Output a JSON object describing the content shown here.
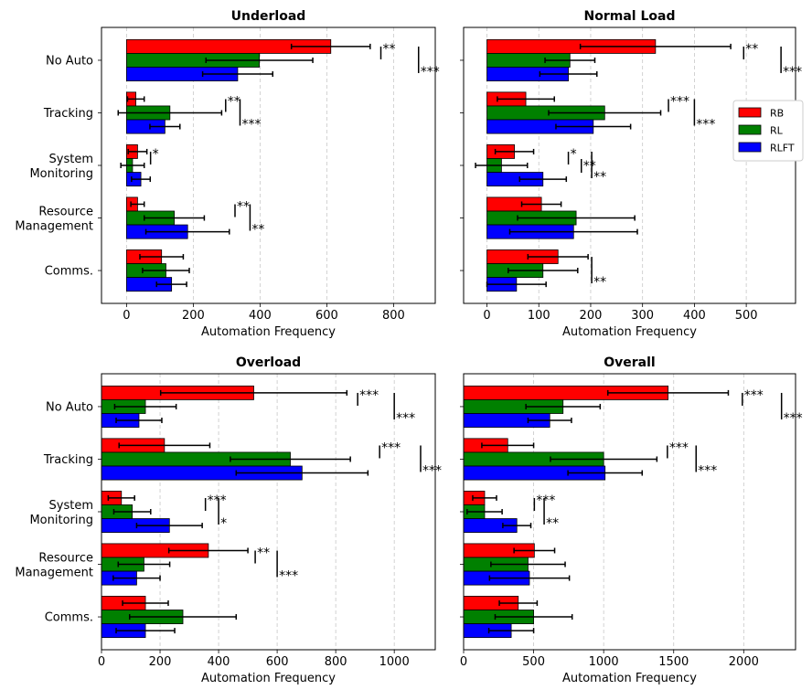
{
  "figure": {
    "categories": [
      "No Auto",
      "Tracking",
      "System Monitoring",
      "Resource Management",
      "Comms."
    ],
    "category_lines": [
      [
        "No Auto"
      ],
      [
        "Tracking"
      ],
      [
        "System",
        "Monitoring"
      ],
      [
        "Resource",
        "Management"
      ],
      [
        "Comms."
      ]
    ],
    "legend": {
      "placement": "right of top-right panel",
      "entries": [
        {
          "name": "RB",
          "color": "#ff0000"
        },
        {
          "name": "RL",
          "color": "#008000"
        },
        {
          "name": "RLFT",
          "color": "#0000ff"
        }
      ]
    }
  },
  "chart_data": [
    {
      "type": "bar",
      "orientation": "horizontal",
      "title": "Underload",
      "xlabel": "Automation Frequency",
      "xlim": [
        -75,
        925
      ],
      "xticks": [
        0,
        200,
        400,
        600,
        800
      ],
      "grid": "vertical dashed",
      "categories": [
        "No Auto",
        "Tracking",
        "System Monitoring",
        "Resource Management",
        "Comms."
      ],
      "series": [
        {
          "name": "RB",
          "color": "#ff0000",
          "values": [
            612,
            28,
            33,
            33,
            105
          ],
          "errors": [
            118,
            25,
            28,
            20,
            65
          ]
        },
        {
          "name": "RL",
          "color": "#008000",
          "values": [
            398,
            130,
            18,
            143,
            118
          ],
          "errors": [
            160,
            155,
            35,
            90,
            70
          ]
        },
        {
          "name": "RLFT",
          "color": "#0000ff",
          "values": [
            333,
            115,
            43,
            183,
            135
          ],
          "errors": [
            105,
            45,
            28,
            125,
            45
          ]
        }
      ],
      "annotations": [
        {
          "category": "No Auto",
          "bracket_x": 762,
          "stars": "**",
          "level": "upper"
        },
        {
          "category": "No Auto",
          "bracket_x": 875,
          "stars": "***",
          "level": "lower"
        },
        {
          "category": "Tracking",
          "bracket_x": 297,
          "stars": "**",
          "level": "upper"
        },
        {
          "category": "Tracking",
          "bracket_x": 340,
          "stars": "***",
          "level": "lower"
        },
        {
          "category": "System Monitoring",
          "bracket_x": 72,
          "stars": "*",
          "level": "upper"
        },
        {
          "category": "Resource Management",
          "bracket_x": 325,
          "stars": "**",
          "level": "upper"
        },
        {
          "category": "Resource Management",
          "bracket_x": 370,
          "stars": "**",
          "level": "lower"
        }
      ]
    },
    {
      "type": "bar",
      "orientation": "horizontal",
      "title": "Normal Load",
      "xlabel": "Automation Frequency",
      "xlim": [
        -45,
        595
      ],
      "xticks": [
        0,
        100,
        200,
        300,
        400,
        500
      ],
      "grid": "vertical dashed",
      "categories": [
        "No Auto",
        "Tracking",
        "System Monitoring",
        "Resource Management",
        "Comms."
      ],
      "series": [
        {
          "name": "RB",
          "color": "#ff0000",
          "values": [
            325,
            75,
            53,
            105,
            137
          ],
          "errors": [
            145,
            55,
            37,
            38,
            58
          ]
        },
        {
          "name": "RL",
          "color": "#008000",
          "values": [
            160,
            227,
            28,
            172,
            108
          ],
          "errors": [
            48,
            108,
            50,
            113,
            67
          ]
        },
        {
          "name": "RLFT",
          "color": "#0000ff",
          "values": [
            157,
            205,
            108,
            167,
            57
          ],
          "errors": [
            55,
            72,
            45,
            123,
            57
          ]
        }
      ],
      "annotations": [
        {
          "category": "No Auto",
          "bracket_x": 495,
          "stars": "**",
          "level": "upper"
        },
        {
          "category": "No Auto",
          "bracket_x": 567,
          "stars": "***",
          "level": "lower"
        },
        {
          "category": "Tracking",
          "bracket_x": 350,
          "stars": "***",
          "level": "upper"
        },
        {
          "category": "Tracking",
          "bracket_x": 400,
          "stars": "***",
          "level": "lower"
        },
        {
          "category": "System Monitoring",
          "bracket_x": 157,
          "stars": "*",
          "level": "upper"
        },
        {
          "category": "System Monitoring",
          "bracket_x": 182,
          "stars": "**",
          "level": "middle"
        },
        {
          "category": "System Monitoring",
          "bracket_x": 202,
          "stars": "**",
          "level": "lower"
        },
        {
          "category": "Comms.",
          "bracket_x": 202,
          "stars": "**",
          "level": "lower"
        }
      ]
    },
    {
      "type": "bar",
      "orientation": "horizontal",
      "title": "Overload",
      "xlabel": "Automation Frequency",
      "xlim": [
        0,
        1140
      ],
      "xticks": [
        0,
        200,
        400,
        600,
        800,
        1000
      ],
      "grid": "vertical dashed",
      "categories": [
        "No Auto",
        "Tracking",
        "System Monitoring",
        "Resource Management",
        "Comms."
      ],
      "series": [
        {
          "name": "RB",
          "color": "#ff0000",
          "values": [
            520,
            215,
            68,
            365,
            150
          ],
          "errors": [
            318,
            155,
            45,
            135,
            78
          ]
        },
        {
          "name": "RL",
          "color": "#008000",
          "values": [
            150,
            645,
            105,
            145,
            278
          ],
          "errors": [
            105,
            205,
            63,
            88,
            182
          ]
        },
        {
          "name": "RLFT",
          "color": "#0000ff",
          "values": [
            128,
            685,
            232,
            120,
            150
          ],
          "errors": [
            78,
            225,
            112,
            80,
            100
          ]
        }
      ],
      "annotations": [
        {
          "category": "No Auto",
          "bracket_x": 875,
          "stars": "***",
          "level": "upper"
        },
        {
          "category": "No Auto",
          "bracket_x": 1000,
          "stars": "***",
          "level": "lower"
        },
        {
          "category": "Tracking",
          "bracket_x": 950,
          "stars": "***",
          "level": "upper"
        },
        {
          "category": "Tracking",
          "bracket_x": 1090,
          "stars": "***",
          "level": "lower"
        },
        {
          "category": "System Monitoring",
          "bracket_x": 355,
          "stars": "***",
          "level": "upper"
        },
        {
          "category": "System Monitoring",
          "bracket_x": 400,
          "stars": "*",
          "level": "lower"
        },
        {
          "category": "Resource Management",
          "bracket_x": 525,
          "stars": "**",
          "level": "upper"
        },
        {
          "category": "Resource Management",
          "bracket_x": 600,
          "stars": "***",
          "level": "lower"
        }
      ]
    },
    {
      "type": "bar",
      "orientation": "horizontal",
      "title": "Overall",
      "xlabel": "Automation Frequency",
      "xlim": [
        0,
        2370
      ],
      "xticks": [
        0,
        500,
        1000,
        1500,
        2000
      ],
      "grid": "vertical dashed",
      "categories": [
        "No Auto",
        "Tracking",
        "System Monitoring",
        "Resource Management",
        "Comms."
      ],
      "series": [
        {
          "name": "RB",
          "color": "#ff0000",
          "values": [
            1460,
            315,
            150,
            505,
            390
          ],
          "errors": [
            430,
            185,
            85,
            145,
            135
          ]
        },
        {
          "name": "RL",
          "color": "#008000",
          "values": [
            710,
            1000,
            150,
            460,
            500
          ],
          "errors": [
            265,
            380,
            125,
            265,
            275
          ]
        },
        {
          "name": "RLFT",
          "color": "#0000ff",
          "values": [
            615,
            1010,
            380,
            470,
            340
          ],
          "errors": [
            155,
            265,
            100,
            285,
            160
          ]
        }
      ],
      "annotations": [
        {
          "category": "No Auto",
          "bracket_x": 1990,
          "stars": "***",
          "level": "upper"
        },
        {
          "category": "No Auto",
          "bracket_x": 2270,
          "stars": "***",
          "level": "lower"
        },
        {
          "category": "Tracking",
          "bracket_x": 1455,
          "stars": "***",
          "level": "upper"
        },
        {
          "category": "Tracking",
          "bracket_x": 1660,
          "stars": "***",
          "level": "lower"
        },
        {
          "category": "System Monitoring",
          "bracket_x": 505,
          "stars": "***",
          "level": "upper"
        },
        {
          "category": "System Monitoring",
          "bracket_x": 575,
          "stars": "**",
          "level": "lower"
        }
      ]
    }
  ]
}
